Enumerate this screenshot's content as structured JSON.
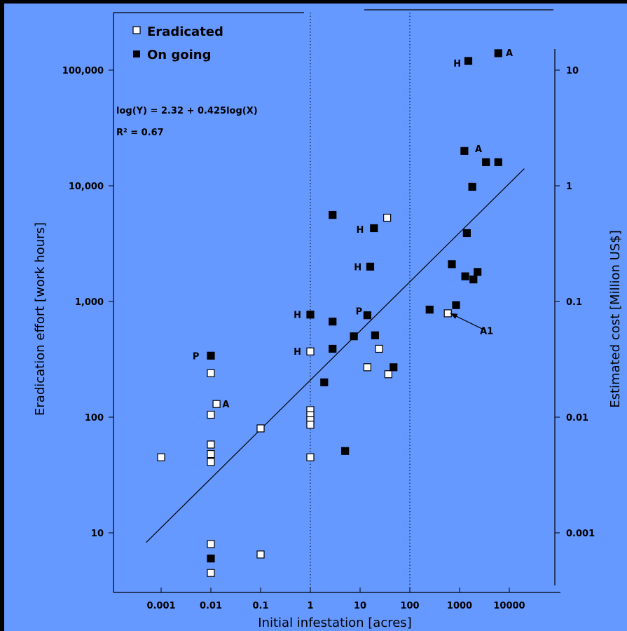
{
  "colors": {
    "outer_background": "#000000",
    "plot_background": "#6699ff",
    "ink": "#000000",
    "open_marker_fill": "#ffffff"
  },
  "chart_data": {
    "type": "scatter",
    "xlabel": "Initial infestation [acres]",
    "ylabel": "Eradication effort  [work hours]",
    "y2label": "Estimated cost [Million US$]",
    "x_scale": "log",
    "y_scale": "log",
    "xlim": [
      0.0001,
      30000
    ],
    "ylim": [
      3.5,
      300000
    ],
    "x_ticks": [
      {
        "value": 0.001,
        "label": "0.001"
      },
      {
        "value": 0.01,
        "label": "0.01"
      },
      {
        "value": 0.1,
        "label": "0.1"
      },
      {
        "value": 1,
        "label": "1"
      },
      {
        "value": 10,
        "label": "10"
      },
      {
        "value": 100,
        "label": "100"
      },
      {
        "value": 1000,
        "label": "1000"
      },
      {
        "value": 10000,
        "label": "10000"
      }
    ],
    "y_ticks": [
      {
        "value": 10,
        "label": "10"
      },
      {
        "value": 100,
        "label": "100"
      },
      {
        "value": 1000,
        "label": "1,000"
      },
      {
        "value": 10000,
        "label": "10,000"
      },
      {
        "value": 100000,
        "label": "100,000"
      }
    ],
    "y2_ticks": [
      {
        "value": 10,
        "label": "0.001"
      },
      {
        "value": 100,
        "label": "0.01"
      },
      {
        "value": 1000,
        "label": "0.1"
      },
      {
        "value": 10000,
        "label": "1"
      },
      {
        "value": 100000,
        "label": "10"
      }
    ],
    "vertical_reference_lines": [
      1,
      100
    ],
    "legend": {
      "position": "top-left",
      "entries": [
        {
          "label": "Eradicated",
          "marker": "open-square"
        },
        {
          "label": "On going",
          "marker": "filled-square"
        }
      ]
    },
    "equation": "log(Y) = 2.32 + 0.425log(X)",
    "r_squared": "R² = 0.67",
    "regression": {
      "intercept": 2.32,
      "slope": 0.425,
      "x_from": 0.0005,
      "x_to": 20000
    },
    "series": [
      {
        "name": "Eradicated",
        "marker": "open-square",
        "points": [
          {
            "x": 0.001,
            "y": 45
          },
          {
            "x": 0.01,
            "y": 240
          },
          {
            "x": 0.01,
            "y": 105
          },
          {
            "x": 0.01,
            "y": 58
          },
          {
            "x": 0.01,
            "y": 48
          },
          {
            "x": 0.01,
            "y": 41
          },
          {
            "x": 0.01,
            "y": 8
          },
          {
            "x": 0.01,
            "y": 4.5
          },
          {
            "x": 0.013,
            "y": 130
          },
          {
            "x": 0.1,
            "y": 80
          },
          {
            "x": 0.1,
            "y": 6.5
          },
          {
            "x": 1,
            "y": 370
          },
          {
            "x": 1,
            "y": 115
          },
          {
            "x": 1,
            "y": 104
          },
          {
            "x": 1,
            "y": 94
          },
          {
            "x": 1,
            "y": 86
          },
          {
            "x": 1,
            "y": 45
          },
          {
            "x": 14,
            "y": 270
          },
          {
            "x": 24,
            "y": 390
          },
          {
            "x": 35,
            "y": 5300
          },
          {
            "x": 37,
            "y": 235
          },
          {
            "x": 580,
            "y": 790
          }
        ]
      },
      {
        "name": "On going",
        "marker": "filled-square",
        "points": [
          {
            "x": 0.01,
            "y": 340
          },
          {
            "x": 0.01,
            "y": 6
          },
          {
            "x": 1,
            "y": 770
          },
          {
            "x": 1.9,
            "y": 200
          },
          {
            "x": 2.8,
            "y": 5600
          },
          {
            "x": 2.8,
            "y": 670
          },
          {
            "x": 2.8,
            "y": 390
          },
          {
            "x": 5,
            "y": 51
          },
          {
            "x": 7.5,
            "y": 500
          },
          {
            "x": 14,
            "y": 760
          },
          {
            "x": 16,
            "y": 2000
          },
          {
            "x": 19,
            "y": 4300
          },
          {
            "x": 20,
            "y": 510
          },
          {
            "x": 47,
            "y": 270
          },
          {
            "x": 250,
            "y": 850
          },
          {
            "x": 700,
            "y": 2100
          },
          {
            "x": 850,
            "y": 930
          },
          {
            "x": 1250,
            "y": 20000
          },
          {
            "x": 1300,
            "y": 1650
          },
          {
            "x": 1400,
            "y": 3900
          },
          {
            "x": 1500,
            "y": 120000
          },
          {
            "x": 1800,
            "y": 9800
          },
          {
            "x": 1900,
            "y": 1550
          },
          {
            "x": 2300,
            "y": 1800
          },
          {
            "x": 3400,
            "y": 16000
          },
          {
            "x": 6000,
            "y": 16000
          },
          {
            "x": 6000,
            "y": 140000
          }
        ]
      }
    ],
    "annotations": [
      {
        "text": "P",
        "x": 0.005,
        "y": 340
      },
      {
        "text": "A",
        "x": 0.02,
        "y": 130
      },
      {
        "text": "H",
        "x": 0.55,
        "y": 770
      },
      {
        "text": "H",
        "x": 0.55,
        "y": 370
      },
      {
        "text": "P",
        "x": 9.5,
        "y": 830
      },
      {
        "text": "H",
        "x": 10,
        "y": 4200
      },
      {
        "text": "H",
        "x": 9,
        "y": 2000
      },
      {
        "text": "H",
        "x": 900,
        "y": 115000
      },
      {
        "text": "A",
        "x": 10000,
        "y": 142000
      },
      {
        "text": "A",
        "x": 2400,
        "y": 21000
      },
      {
        "text": "A1",
        "x": 3500,
        "y": 560
      }
    ],
    "arrow": {
      "from_x": 3100,
      "from_y": 570,
      "to_x": 650,
      "to_y": 790
    }
  }
}
